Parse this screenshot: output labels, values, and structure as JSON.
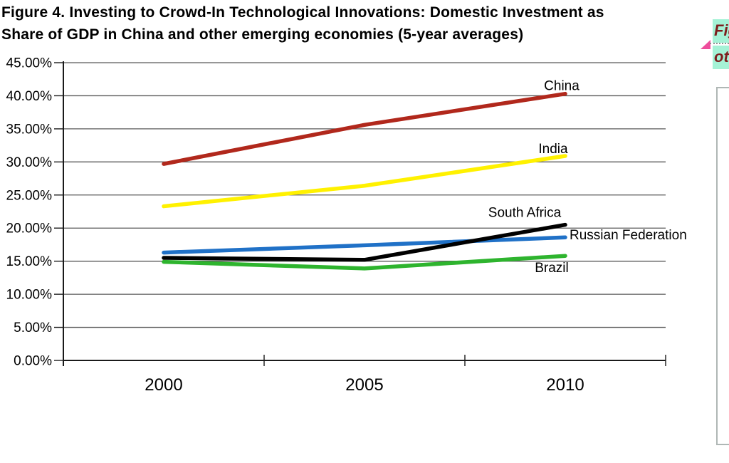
{
  "title": {
    "line1": "Figure 4. Investing to Crowd-In Technological Innovations: Domestic Investment as",
    "line2": "Share of GDP in China and other emerging economies (5-year averages)"
  },
  "chart_data": {
    "type": "line",
    "title": "Figure 4. Investing to Crowd-In Technological Innovations: Domestic Investment as Share of GDP in China and other emerging economies (5-year averages)",
    "categories": [
      "2000",
      "2005",
      "2010"
    ],
    "series": [
      {
        "name": "China",
        "color": "#B1281C",
        "values": [
          29.7,
          35.6,
          40.3
        ],
        "label_dx": -5,
        "label_dy": -5,
        "label_align": "middle"
      },
      {
        "name": "India",
        "color": "#FFF100",
        "values": [
          23.3,
          26.4,
          30.9
        ],
        "label_dx": -17,
        "label_dy": -4,
        "label_align": "middle"
      },
      {
        "name": "South Africa",
        "color": "#000000",
        "values": [
          15.5,
          15.2,
          20.5
        ],
        "label_dx": -57,
        "label_dy": -11,
        "label_align": "middle"
      },
      {
        "name": "Russian Federation",
        "color": "#2071C7",
        "values": [
          16.3,
          17.4,
          18.6
        ],
        "label_dx": 6,
        "label_dy": 3,
        "label_align": "start"
      },
      {
        "name": "Brazil",
        "color": "#2EB42E",
        "values": [
          14.9,
          13.9,
          15.8
        ],
        "label_dx": -19,
        "label_dy": 23,
        "label_align": "middle"
      }
    ],
    "draw_order": [
      0,
      1,
      3,
      4,
      2
    ],
    "xlabel": "",
    "ylabel": "",
    "ylim": [
      0,
      45
    ],
    "ytick_step": 5,
    "ytick_labels": [
      "0.00%",
      "5.00%",
      "10.00%",
      "15.00%",
      "20.00%",
      "25.00%",
      "30.00%",
      "35.00%",
      "40.00%",
      "45.00%"
    ],
    "grid": true,
    "legend_position": "inline-series-labels",
    "colors": {
      "gridline": "#595959",
      "axis": "#1A1A1A",
      "tick_text": "#000000"
    }
  },
  "margin_notes": {
    "note_top": "Fig",
    "note_bottom": "ot",
    "highlight_color": "#A5F2D6",
    "text_color": "#7E1E1E",
    "marker_color": "#EE4D9C"
  }
}
